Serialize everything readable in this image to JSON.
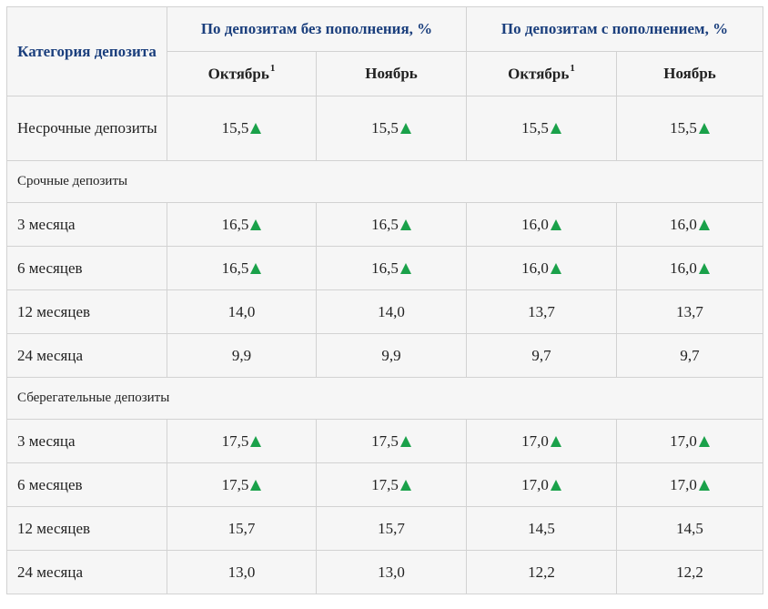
{
  "header": {
    "category_label": "Категория депозита",
    "group_without": "По депозитам без пополнения, %",
    "group_with": "По депозитам с пополнением, %",
    "october": "Октябрь",
    "october_note": "1",
    "november": "Ноябрь"
  },
  "rows": {
    "demand": {
      "label": "Несрочные депозиты",
      "values": [
        "15,5",
        "15,5",
        "15,5",
        "15,5"
      ],
      "trend": [
        "up",
        "up",
        "up",
        "up"
      ]
    },
    "term_section": "Срочные депозиты",
    "term": [
      {
        "label": "3 месяца",
        "values": [
          "16,5",
          "16,5",
          "16,0",
          "16,0"
        ],
        "trend": [
          "up",
          "up",
          "up",
          "up"
        ]
      },
      {
        "label": "6 месяцев",
        "values": [
          "16,5",
          "16,5",
          "16,0",
          "16,0"
        ],
        "trend": [
          "up",
          "up",
          "up",
          "up"
        ]
      },
      {
        "label": "12 месяцев",
        "values": [
          "14,0",
          "14,0",
          "13,7",
          "13,7"
        ],
        "trend": [
          "",
          "",
          "",
          ""
        ]
      },
      {
        "label": "24 месяца",
        "values": [
          "9,9",
          "9,9",
          "9,7",
          "9,7"
        ],
        "trend": [
          "",
          "",
          "",
          ""
        ]
      }
    ],
    "savings_section": "Сберегательные депозиты",
    "savings": [
      {
        "label": "3 месяца",
        "values": [
          "17,5",
          "17,5",
          "17,0",
          "17,0"
        ],
        "trend": [
          "up",
          "up",
          "up",
          "up"
        ]
      },
      {
        "label": "6 месяцев",
        "values": [
          "17,5",
          "17,5",
          "17,0",
          "17,0"
        ],
        "trend": [
          "up",
          "up",
          "up",
          "up"
        ]
      },
      {
        "label": "12 месяцев",
        "values": [
          "15,7",
          "15,7",
          "14,5",
          "14,5"
        ],
        "trend": [
          "",
          "",
          "",
          ""
        ]
      },
      {
        "label": "24 месяца",
        "values": [
          "13,0",
          "13,0",
          "12,2",
          "12,2"
        ],
        "trend": [
          "",
          "",
          "",
          ""
        ]
      }
    ]
  },
  "colors": {
    "header_text": "#1b3f7d",
    "trend_up": "#1aa14a",
    "cell_background": "#f6f6f6",
    "border": "#d2d2d2"
  },
  "icons": {
    "trend_up": "triangle-up-icon"
  }
}
